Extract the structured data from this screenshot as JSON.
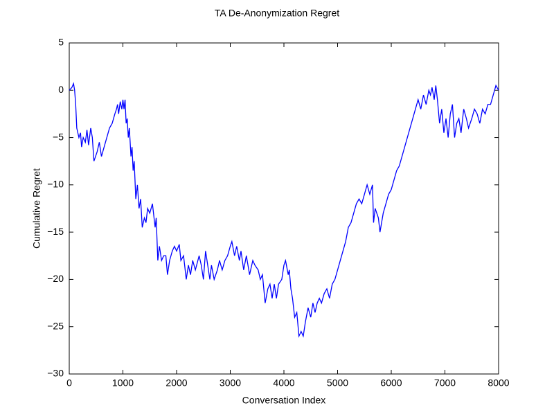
{
  "chart_data": {
    "type": "line",
    "title": "TA De-Anonymization Regret",
    "x_label": "Conversation Index",
    "y_label": "Cumulative Regret",
    "xlim": [
      0,
      8000
    ],
    "ylim": [
      -30,
      5
    ],
    "xticks": [
      0,
      1000,
      2000,
      3000,
      4000,
      5000,
      6000,
      7000,
      8000
    ],
    "yticks": [
      {
        "value": -30,
        "label": "−30"
      },
      {
        "value": -25,
        "label": "−25"
      },
      {
        "value": -20,
        "label": "−20"
      },
      {
        "value": -15,
        "label": "−15"
      },
      {
        "value": -10,
        "label": "−10"
      },
      {
        "value": -5,
        "label": "−5"
      },
      0,
      5
    ],
    "x": [
      0,
      50,
      80,
      100,
      120,
      140,
      180,
      210,
      230,
      260,
      300,
      330,
      360,
      400,
      430,
      460,
      520,
      560,
      600,
      650,
      700,
      750,
      800,
      850,
      880,
      900,
      920,
      950,
      980,
      1000,
      1020,
      1040,
      1060,
      1080,
      1100,
      1120,
      1150,
      1170,
      1190,
      1210,
      1240,
      1270,
      1300,
      1330,
      1360,
      1400,
      1430,
      1460,
      1500,
      1550,
      1600,
      1620,
      1650,
      1680,
      1720,
      1760,
      1800,
      1830,
      1870,
      1920,
      1960,
      2000,
      2050,
      2080,
      2130,
      2180,
      2220,
      2260,
      2300,
      2350,
      2420,
      2460,
      2500,
      2540,
      2580,
      2620,
      2650,
      2700,
      2760,
      2800,
      2850,
      2900,
      2950,
      3000,
      3030,
      3080,
      3120,
      3170,
      3200,
      3250,
      3300,
      3360,
      3420,
      3460,
      3520,
      3560,
      3600,
      3650,
      3700,
      3740,
      3780,
      3820,
      3860,
      3900,
      3960,
      4000,
      4030,
      4080,
      4100,
      4130,
      4160,
      4200,
      4240,
      4280,
      4320,
      4360,
      4400,
      4450,
      4500,
      4540,
      4580,
      4620,
      4660,
      4700,
      4750,
      4800,
      4850,
      4900,
      4950,
      5000,
      5050,
      5100,
      5150,
      5200,
      5250,
      5300,
      5350,
      5400,
      5450,
      5500,
      5550,
      5600,
      5650,
      5670,
      5700,
      5760,
      5790,
      5850,
      5900,
      5950,
      6000,
      6050,
      6100,
      6150,
      6500,
      6550,
      6600,
      6650,
      6700,
      6730,
      6760,
      6800,
      6830,
      6860,
      6900,
      6940,
      6980,
      7020,
      7060,
      7100,
      7140,
      7180,
      7220,
      7260,
      7300,
      7350,
      7400,
      7440,
      7500,
      7550,
      7600,
      7650,
      7700,
      7750,
      7800,
      7850,
      7900,
      7950,
      8000
    ],
    "series": [
      {
        "color": "#0000ff",
        "values": [
          0,
          0.3,
          0.7,
          0,
          -1.5,
          -4,
          -5,
          -4.5,
          -6,
          -5,
          -5.5,
          -4.2,
          -5.8,
          -4,
          -5,
          -7.5,
          -6.5,
          -5.5,
          -7,
          -6,
          -5,
          -4,
          -3.5,
          -2.5,
          -2,
          -1.5,
          -2.5,
          -1.2,
          -2,
          -1,
          -2,
          -1,
          -3.5,
          -3,
          -5,
          -4,
          -7,
          -6,
          -8.5,
          -7.5,
          -11.5,
          -10,
          -12.5,
          -11.5,
          -14.5,
          -13.5,
          -14,
          -12.5,
          -13,
          -12,
          -14.5,
          -13.5,
          -18,
          -16.5,
          -18,
          -17.5,
          -17.5,
          -19.5,
          -18,
          -17,
          -16.5,
          -17,
          -16.3,
          -18,
          -17.5,
          -20,
          -18.5,
          -19.5,
          -18,
          -19,
          -17.5,
          -18.5,
          -20,
          -17,
          -18.5,
          -20,
          -18.5,
          -20,
          -19,
          -18,
          -19,
          -18,
          -17.5,
          -16.5,
          -16,
          -17.5,
          -16.5,
          -18,
          -17,
          -19,
          -17.5,
          -19.5,
          -18,
          -18.5,
          -19,
          -20,
          -19.5,
          -22.5,
          -21,
          -20.5,
          -22,
          -20.5,
          -22,
          -20.5,
          -20,
          -18.5,
          -18,
          -19.5,
          -19,
          -21,
          -22,
          -24,
          -23.5,
          -26,
          -25.5,
          -26,
          -24.5,
          -23,
          -24,
          -22.5,
          -23.5,
          -22.5,
          -22,
          -22.5,
          -21.5,
          -21,
          -22,
          -20.5,
          -20,
          -19,
          -18,
          -17,
          -16,
          -14.5,
          -14,
          -13,
          -12,
          -11.5,
          -12,
          -11,
          -10,
          -11,
          -10,
          -14,
          -12.5,
          -13.5,
          -15,
          -13,
          -12,
          -11,
          -10.5,
          -9.5,
          -8.5,
          -8,
          -1,
          -2,
          -0.5,
          -1.5,
          0,
          -0.5,
          0.3,
          -1,
          0.5,
          -1,
          -3.5,
          -2,
          -4.5,
          -3,
          -5,
          -2.5,
          -1.5,
          -5,
          -3.5,
          -3,
          -4.5,
          -2,
          -3,
          -4,
          -3,
          -2,
          -2.5,
          -3.5,
          -2,
          -2.5,
          -1.5,
          -1.5,
          -0.5,
          0.5,
          0
        ]
      }
    ]
  }
}
